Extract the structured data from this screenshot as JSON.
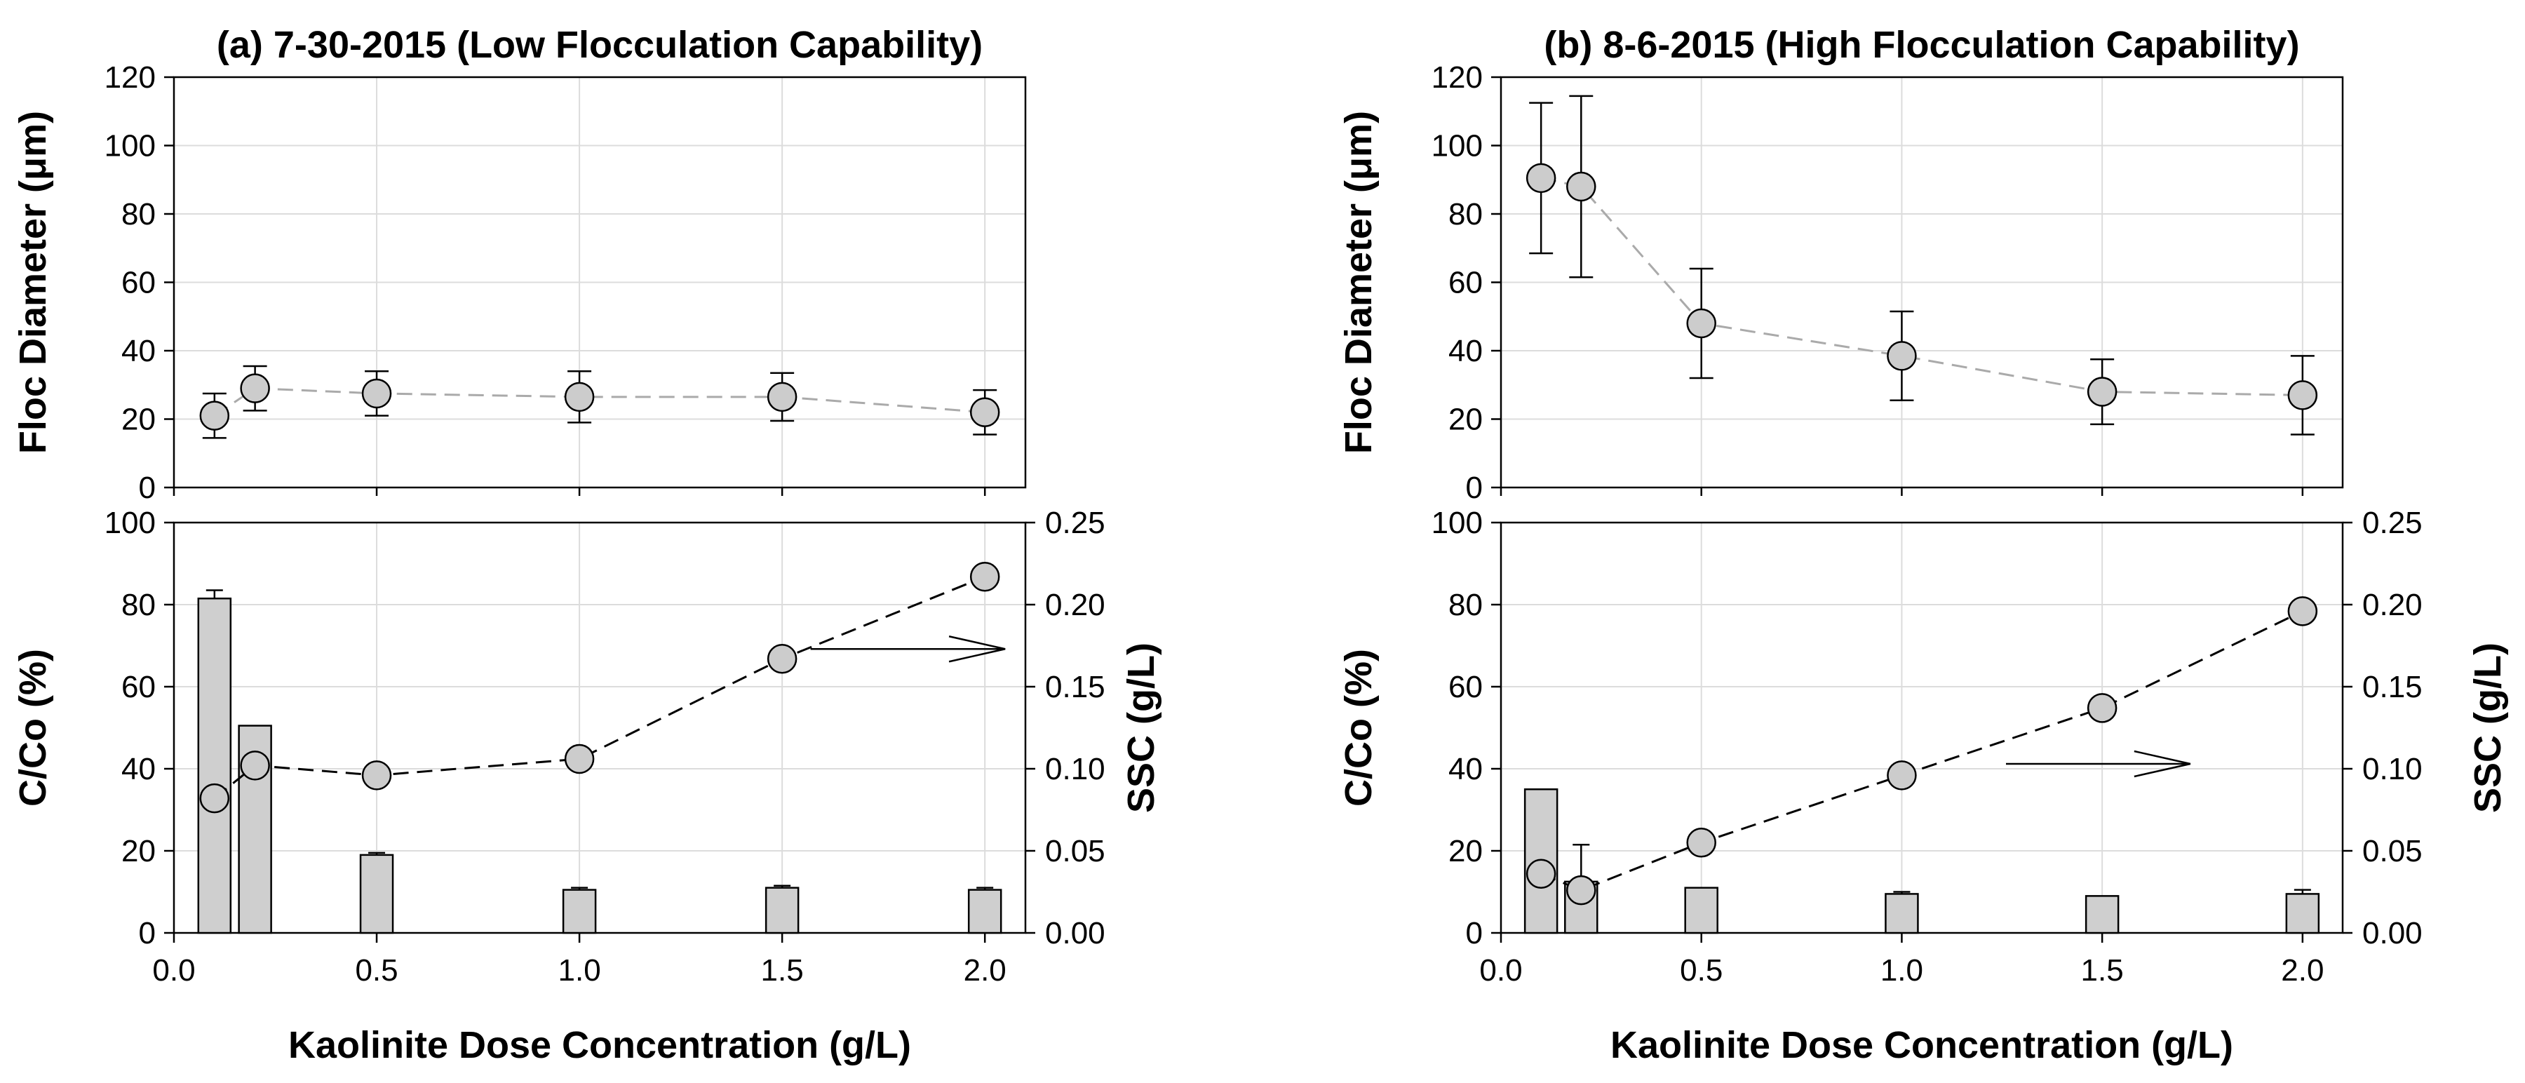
{
  "colors": {
    "marker_fill": "#cccccc",
    "bar_fill": "#cfcfcf",
    "stroke": "#000000",
    "grid": "#dcdcdc",
    "dashed_line_top": "#aaaaaa"
  },
  "chart_data": [
    {
      "panel": "a",
      "title": "(a) 7-30-2015 (Low Flocculation Capability)",
      "xlabel": "Kaolinite Dose Concentration (g/L)",
      "xlim": [
        0.0,
        2.1
      ],
      "xticks": [
        "0.0",
        "0.5",
        "1.0",
        "1.5",
        "2.0"
      ],
      "top": {
        "type": "scatter",
        "ylabel": "Floc Diameter (μm)",
        "ylim": [
          0,
          120
        ],
        "yticks": [
          "0",
          "20",
          "40",
          "60",
          "80",
          "100",
          "120"
        ],
        "grid": true,
        "series": [
          {
            "x": [
              0.1,
              0.2,
              0.5,
              1.0,
              1.5,
              2.0
            ],
            "y": [
              21,
              29,
              27.5,
              26.5,
              26.5,
              22
            ],
            "err": [
              6.5,
              6.5,
              6.5,
              7.5,
              7,
              6.5
            ]
          }
        ]
      },
      "bottom": {
        "type": "bar",
        "ylabel": "C/Co (%)",
        "ylim": [
          0,
          100
        ],
        "yticks": [
          "0",
          "20",
          "40",
          "60",
          "80",
          "100"
        ],
        "y2label": "SSC (g/L)",
        "y2lim": [
          0,
          0.25
        ],
        "y2ticks": [
          "0.00",
          "0.05",
          "0.10",
          "0.15",
          "0.20",
          "0.25"
        ],
        "grid": true,
        "bars": {
          "x": [
            0.1,
            0.2,
            0.5,
            1.0,
            1.5,
            2.0
          ],
          "values": [
            81.5,
            50.5,
            19,
            10.5,
            11,
            10.5
          ],
          "err": [
            2,
            0,
            0.5,
            0.5,
            0.5,
            0.5
          ]
        },
        "ssc": {
          "x": [
            0.1,
            0.2,
            0.5,
            1.0,
            1.5,
            2.0
          ],
          "values": [
            0.082,
            0.102,
            0.096,
            0.106,
            0.167,
            0.217
          ]
        },
        "annotation": "arrow pointing right toward SSC axis"
      }
    },
    {
      "panel": "b",
      "title": "(b) 8-6-2015 (High Flocculation Capability)",
      "xlabel": "Kaolinite Dose Concentration (g/L)",
      "xlim": [
        0.0,
        2.1
      ],
      "xticks": [
        "0.0",
        "0.5",
        "1.0",
        "1.5",
        "2.0"
      ],
      "top": {
        "type": "scatter",
        "ylabel": "Floc Diameter (μm)",
        "ylim": [
          0,
          120
        ],
        "yticks": [
          "0",
          "20",
          "40",
          "60",
          "80",
          "100",
          "120"
        ],
        "grid": true,
        "series": [
          {
            "x": [
              0.1,
              0.2,
              0.5,
              1.0,
              1.5,
              2.0
            ],
            "y": [
              90.5,
              88,
              48,
              38.5,
              28,
              27
            ],
            "err": [
              22,
              26.5,
              16,
              13,
              9.5,
              11.5
            ]
          }
        ]
      },
      "bottom": {
        "type": "bar",
        "ylabel": "C/Co (%)",
        "ylim": [
          0,
          100
        ],
        "yticks": [
          "0",
          "20",
          "40",
          "60",
          "80",
          "100"
        ],
        "y2label": "SSC (g/L)",
        "y2lim": [
          0,
          0.25
        ],
        "y2ticks": [
          "0.00",
          "0.05",
          "0.10",
          "0.15",
          "0.20",
          "0.25"
        ],
        "grid": true,
        "bars": {
          "x": [
            0.1,
            0.2,
            0.5,
            1.0,
            1.5,
            2.0
          ],
          "values": [
            35,
            12.5,
            11,
            9.5,
            9,
            9.5
          ],
          "err": [
            0,
            9,
            0,
            0.5,
            0,
            1
          ]
        },
        "ssc": {
          "x": [
            0.1,
            0.2,
            0.5,
            1.0,
            1.5,
            2.0
          ],
          "values": [
            0.036,
            0.026,
            0.055,
            0.096,
            0.137,
            0.196
          ]
        },
        "annotation": "arrow pointing right toward SSC axis"
      }
    }
  ]
}
